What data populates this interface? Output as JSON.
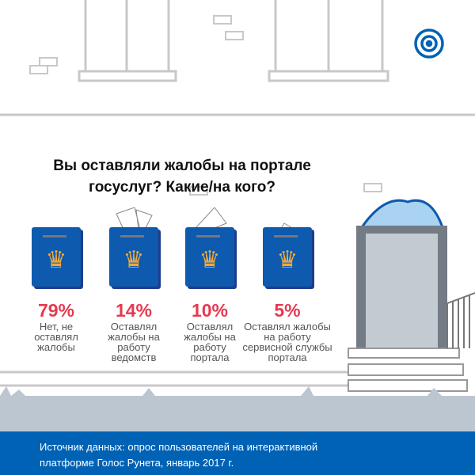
{
  "title": "Вы оставляли жалобы на портале госуслуг? Какие/на кого?",
  "colors": {
    "accent": "#e63950",
    "brand": "#0062b4",
    "box": "#0d5aae",
    "ground": "#bcc6d0"
  },
  "chart_data": {
    "type": "bar",
    "categories": [
      "Нет, не оставлял жалобы",
      "Оставлял жалобы на работу ведомств",
      "Оставлял жалобы на работу портала",
      "Оставлял жалобы на работу сервисной службы портала"
    ],
    "values": [
      79,
      14,
      10,
      5
    ]
  },
  "items": [
    {
      "pct": "79%",
      "label": "Нет, не оставлял жалобы",
      "envelopes": 0
    },
    {
      "pct": "14%",
      "label": "Оставлял жалобы на работу ведомств",
      "envelopes": 2
    },
    {
      "pct": "10%",
      "label": "Оставлял жалобы на работу портала",
      "envelopes": 1
    },
    {
      "pct": "5%",
      "label": "Оставлял жалобы на работу сервисной службы портала",
      "envelopes": 1
    }
  ],
  "footer": {
    "source": "Источник данных: опрос пользователей на интерактивной платформе Голос Рунета, январь 2017 г."
  }
}
